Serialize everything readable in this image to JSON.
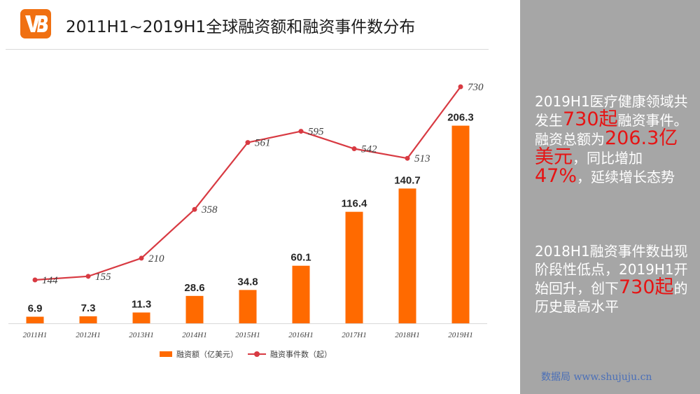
{
  "header": {
    "title": "2011H1~2019H1全球融资额和融资事件数分布",
    "logo_color": "#f07012"
  },
  "chart_data": {
    "type": "bar",
    "title": "2011H1~2019H1全球融资额和融资事件数分布",
    "categories": [
      "2011H1",
      "2012H1",
      "2013H1",
      "2014H1",
      "2015H1",
      "2016H1",
      "2017H1",
      "2018H1",
      "2019H1"
    ],
    "series": [
      {
        "name": "融资额（亿美元）",
        "type": "bar",
        "color": "#ff6a00",
        "values": [
          6.9,
          7.3,
          11.3,
          28.6,
          34.8,
          60.1,
          116.4,
          140.7,
          206.3
        ],
        "labels": [
          "6.9",
          "7.3",
          "11.3",
          "28.6",
          "34.8",
          "60.1",
          "116.4",
          "140.7",
          "206.3"
        ]
      },
      {
        "name": "融资事件数（起）",
        "type": "line",
        "color": "#d83a42",
        "values": [
          144,
          155,
          210,
          358,
          561,
          595,
          542,
          513,
          730
        ],
        "labels": [
          "144",
          "155",
          "210",
          "358",
          "561",
          "595",
          "542",
          "513",
          "730"
        ]
      }
    ],
    "xlabel": "",
    "ylabel": "",
    "grid": false,
    "legend_position": "bottom"
  },
  "side_panel": {
    "background": "#a6a6a6",
    "highlight_color": "#e61414",
    "p1": {
      "t1": "2019H1医疗健康领域共发生",
      "h1": "730起",
      "t2": "融资事件。融资总额为",
      "h2": "206.3亿美元",
      "t3": "，同比增加",
      "h3": "47%",
      "t4": "，延续增长态势"
    },
    "p2": {
      "t1": "2018H1融资事件数出现阶段性低点，2019H1开始回升，创下",
      "h1": "730起",
      "t2": "的历史最高水平"
    },
    "watermark": "数据局  www.shujuju.cn"
  }
}
